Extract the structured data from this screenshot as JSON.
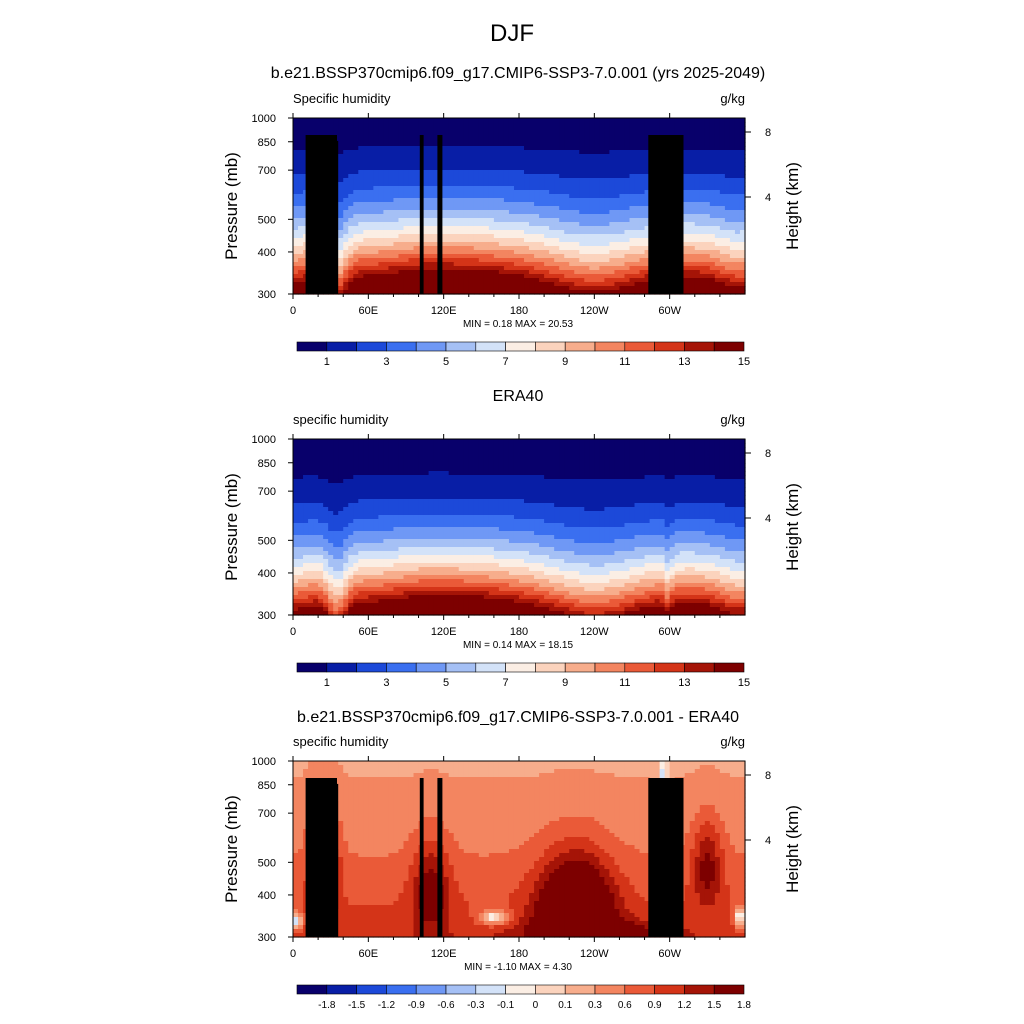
{
  "figure": {
    "title": "DJF"
  },
  "panels": [
    {
      "title": "b.e21.BSSP370cmip6.f09_g17.CMIP6-SSP3-7.0.001 (yrs 2025-2049)",
      "left_label": "Specific humidity",
      "units": "g/kg",
      "min_max": "MIN =   0.18  MAX =  20.53"
    },
    {
      "title": "ERA40",
      "left_label": "specific humidity",
      "units": "g/kg",
      "min_max": "MIN =   0.14  MAX =  18.15"
    },
    {
      "title": "b.e21.BSSP370cmip6.f09_g17.CMIP6-SSP3-7.0.001 - ERA40",
      "left_label": "specific humidity",
      "units": "g/kg",
      "min_max": "MIN =  -1.10  MAX =   4.30"
    }
  ],
  "chart_data": [
    {
      "type": "heatmap",
      "xlabel": "",
      "ylabel": "Pressure (mb)",
      "y2label": "Height (km)",
      "x_ticks": [
        "0",
        "60E",
        "120E",
        "180",
        "120W",
        "60W"
      ],
      "x_tick_lon": [
        0,
        60,
        120,
        180,
        240,
        300
      ],
      "xlim": [
        0,
        360
      ],
      "y_ticks": [
        "300",
        "400",
        "500",
        "700",
        "850",
        "1000"
      ],
      "y_tick_p": [
        300,
        400,
        500,
        700,
        850,
        1000
      ],
      "ylim": [
        1000,
        300
      ],
      "y_scale": "log",
      "y2_ticks": [
        "8",
        "4"
      ],
      "colorbar_labels": [
        "1",
        "3",
        "5",
        "7",
        "9",
        "11",
        "13",
        "15"
      ],
      "colorbar_levels": [
        0,
        1,
        2,
        3,
        4,
        5,
        6,
        7,
        8,
        9,
        10,
        11,
        12,
        13,
        14,
        15,
        16
      ],
      "surface_min_pressure": 850,
      "grid": false
    },
    {
      "type": "heatmap",
      "xlabel": "",
      "ylabel": "Pressure (mb)",
      "y2label": "Height (km)",
      "x_ticks": [
        "0",
        "60E",
        "120E",
        "180",
        "120W",
        "60W"
      ],
      "x_tick_lon": [
        0,
        60,
        120,
        180,
        240,
        300
      ],
      "xlim": [
        0,
        360
      ],
      "y_ticks": [
        "300",
        "400",
        "500",
        "700",
        "850",
        "1000"
      ],
      "y_tick_p": [
        300,
        400,
        500,
        700,
        850,
        1000
      ],
      "ylim": [
        1000,
        300
      ],
      "y_scale": "log",
      "y2_ticks": [
        "8",
        "4"
      ],
      "colorbar_labels": [
        "1",
        "3",
        "5",
        "7",
        "9",
        "11",
        "13",
        "15"
      ],
      "colorbar_levels": [
        0,
        1,
        2,
        3,
        4,
        5,
        6,
        7,
        8,
        9,
        10,
        11,
        12,
        13,
        14,
        15,
        16
      ],
      "grid": false
    },
    {
      "type": "heatmap",
      "xlabel": "",
      "ylabel": "Pressure (mb)",
      "y2label": "Height (km)",
      "x_ticks": [
        "0",
        "60E",
        "120E",
        "180",
        "120W",
        "60W"
      ],
      "x_tick_lon": [
        0,
        60,
        120,
        180,
        240,
        300
      ],
      "xlim": [
        0,
        360
      ],
      "y_ticks": [
        "300",
        "400",
        "500",
        "700",
        "850",
        "1000"
      ],
      "y_tick_p": [
        300,
        400,
        500,
        700,
        850,
        1000
      ],
      "ylim": [
        1000,
        300
      ],
      "y_scale": "log",
      "y2_ticks": [
        "8",
        "4"
      ],
      "colorbar_labels": [
        "-1.8",
        "-1.5",
        "-1.2",
        "-0.9",
        "-0.6",
        "-0.3",
        "-0.1",
        "0",
        "0.1",
        "0.3",
        "0.6",
        "0.9",
        "1.2",
        "1.5",
        "1.8"
      ],
      "colorbar_levels": [
        -1.8,
        -1.5,
        -1.2,
        -0.9,
        -0.6,
        -0.3,
        -0.1,
        0,
        0.1,
        0.3,
        0.6,
        0.9,
        1.2,
        1.5,
        1.8
      ],
      "surface_min_pressure": 850,
      "grid": false
    }
  ],
  "colors": {
    "palette": [
      "#08006b",
      "#081ea6",
      "#1c49d9",
      "#3a6ff0",
      "#6f98f5",
      "#a5c0f5",
      "#d3e2f8",
      "#fbeee4",
      "#fbd3bd",
      "#f7ad8c",
      "#f38560",
      "#ea5a38",
      "#d43418",
      "#a51407",
      "#7d0000"
    ],
    "mask": "#000000"
  }
}
